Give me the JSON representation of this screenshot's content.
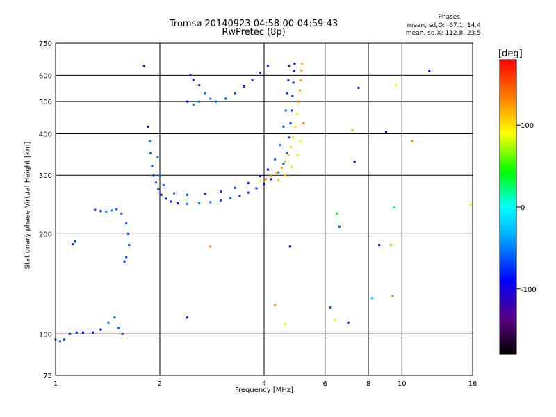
{
  "chart_data": {
    "type": "scatter",
    "title": "Tromsø 20140923 04:58:00-04:59:43",
    "subtitle": "RwPretec (8p)",
    "xlabel": "Frequency [MHz]",
    "ylabel": "Stationary phase Virtual Height [km]",
    "x_scale": "log",
    "y_scale": "log",
    "xlim": [
      1,
      16
    ],
    "ylim": [
      75,
      750
    ],
    "x_ticks": [
      1,
      2,
      4,
      6,
      8,
      10,
      16
    ],
    "x_tick_labels": [
      "1",
      "2",
      "4",
      "6",
      "8",
      "10",
      "16"
    ],
    "y_ticks": [
      75,
      100,
      200,
      300,
      400,
      500,
      600,
      750
    ],
    "y_tick_labels": [
      "75",
      "100",
      "200",
      "300",
      "400",
      "500",
      "600",
      "750"
    ],
    "grid": true,
    "colorbar": {
      "label": "[deg]",
      "range": [
        -180,
        180
      ],
      "ticks": [
        100,
        0,
        -100
      ],
      "tick_labels": [
        "100",
        "0",
        "-100"
      ],
      "colors": [
        "#000000",
        "#5a0080",
        "#0000ff",
        "#00aaff",
        "#00ffff",
        "#00ff00",
        "#ffff00",
        "#ff8000",
        "#ff0000"
      ]
    },
    "stats": {
      "header": "Phases",
      "line_o": "mean, sd,O: -67.1, 14.4",
      "line_x": "mean, sd,X: 112.8, 23.5"
    },
    "series": [
      {
        "mode": "O",
        "phase_deg": -70,
        "points": [
          [
            1.85,
            420
          ],
          [
            1.87,
            380
          ],
          [
            1.88,
            350
          ],
          [
            1.9,
            320
          ],
          [
            1.92,
            300
          ],
          [
            1.95,
            285
          ],
          [
            1.98,
            272
          ],
          [
            2.02,
            262
          ],
          [
            2.08,
            255
          ],
          [
            2.15,
            250
          ],
          [
            2.25,
            247
          ],
          [
            2.4,
            246
          ],
          [
            2.6,
            247
          ],
          [
            2.8,
            249
          ],
          [
            3.0,
            252
          ],
          [
            3.2,
            256
          ],
          [
            3.4,
            260
          ],
          [
            3.6,
            266
          ],
          [
            3.8,
            274
          ],
          [
            4.0,
            282
          ],
          [
            4.2,
            292
          ],
          [
            4.4,
            306
          ],
          [
            4.55,
            325
          ],
          [
            4.65,
            350
          ],
          [
            4.72,
            390
          ],
          [
            4.77,
            430
          ],
          [
            4.8,
            470
          ],
          [
            4.83,
            520
          ],
          [
            4.86,
            570
          ],
          [
            4.88,
            620
          ],
          [
            4.9,
            650
          ],
          [
            1.97,
            340
          ],
          [
            2.0,
            300
          ],
          [
            2.05,
            280
          ],
          [
            2.2,
            265
          ],
          [
            2.4,
            262
          ],
          [
            2.7,
            264
          ],
          [
            3.0,
            268
          ],
          [
            3.3,
            275
          ],
          [
            3.6,
            284
          ],
          [
            3.9,
            298
          ],
          [
            4.1,
            312
          ],
          [
            4.3,
            335
          ],
          [
            4.45,
            370
          ],
          [
            4.55,
            420
          ],
          [
            4.62,
            470
          ],
          [
            4.67,
            530
          ],
          [
            4.7,
            580
          ],
          [
            4.72,
            640
          ],
          [
            2.45,
            600
          ],
          [
            2.5,
            580
          ],
          [
            2.6,
            560
          ],
          [
            2.7,
            530
          ],
          [
            2.8,
            510
          ],
          [
            2.9,
            500
          ],
          [
            3.1,
            510
          ],
          [
            3.3,
            530
          ],
          [
            3.5,
            555
          ],
          [
            3.7,
            580
          ],
          [
            3.9,
            610
          ],
          [
            4.1,
            640
          ],
          [
            2.4,
            500
          ],
          [
            2.5,
            490
          ],
          [
            2.6,
            500
          ],
          [
            1.55,
            230
          ],
          [
            1.6,
            215
          ],
          [
            1.62,
            200
          ],
          [
            1.63,
            185
          ],
          [
            1.6,
            170
          ],
          [
            1.58,
            165
          ],
          [
            1.3,
            236
          ],
          [
            1.35,
            234
          ],
          [
            1.4,
            233
          ],
          [
            1.45,
            235
          ],
          [
            1.5,
            237
          ],
          [
            1.0,
            96
          ],
          [
            1.03,
            95
          ],
          [
            1.06,
            96
          ],
          [
            1.1,
            100
          ],
          [
            1.15,
            101
          ],
          [
            1.2,
            101
          ],
          [
            1.28,
            101
          ],
          [
            1.35,
            103
          ],
          [
            1.42,
            108
          ],
          [
            1.48,
            112
          ],
          [
            1.52,
            104
          ],
          [
            1.56,
            100
          ],
          [
            1.14,
            190
          ],
          [
            1.12,
            186
          ],
          [
            1.8,
            640
          ]
        ]
      },
      {
        "mode": "X",
        "phase_deg": 113,
        "points": [
          [
            3.9,
            288
          ],
          [
            4.05,
            292
          ],
          [
            4.2,
            298
          ],
          [
            4.35,
            305
          ],
          [
            4.5,
            316
          ],
          [
            4.6,
            330
          ],
          [
            4.7,
            345
          ],
          [
            4.78,
            365
          ],
          [
            4.85,
            390
          ],
          [
            4.92,
            420
          ],
          [
            4.98,
            460
          ],
          [
            5.03,
            500
          ],
          [
            5.07,
            540
          ],
          [
            5.1,
            580
          ],
          [
            5.13,
            620
          ],
          [
            5.15,
            650
          ],
          [
            4.4,
            290
          ],
          [
            4.6,
            300
          ],
          [
            4.8,
            318
          ],
          [
            5.0,
            345
          ],
          [
            5.1,
            380
          ],
          [
            5.2,
            430
          ]
        ]
      },
      {
        "mode": "scatter",
        "points": [
          [
            6.2,
            120,
            -60
          ],
          [
            6.4,
            110,
            80
          ],
          [
            6.5,
            230,
            40
          ],
          [
            6.6,
            210,
            -70
          ],
          [
            7.0,
            108,
            -100
          ],
          [
            7.2,
            410,
            120
          ],
          [
            7.3,
            330,
            -100
          ],
          [
            7.5,
            550,
            -110
          ],
          [
            8.6,
            185,
            -110
          ],
          [
            9.3,
            185,
            60
          ],
          [
            9.4,
            130,
            140
          ],
          [
            9.5,
            240,
            20
          ],
          [
            10.7,
            380,
            130
          ],
          [
            12.0,
            620,
            -100
          ],
          [
            15.8,
            245,
            100
          ],
          [
            2.4,
            112,
            -80
          ],
          [
            2.8,
            183,
            140
          ],
          [
            4.3,
            122,
            130
          ],
          [
            4.6,
            107,
            100
          ],
          [
            4.75,
            183,
            -110
          ],
          [
            8.2,
            128,
            -10
          ],
          [
            9.6,
            560,
            80
          ],
          [
            9.0,
            405,
            -100
          ]
        ]
      }
    ]
  }
}
